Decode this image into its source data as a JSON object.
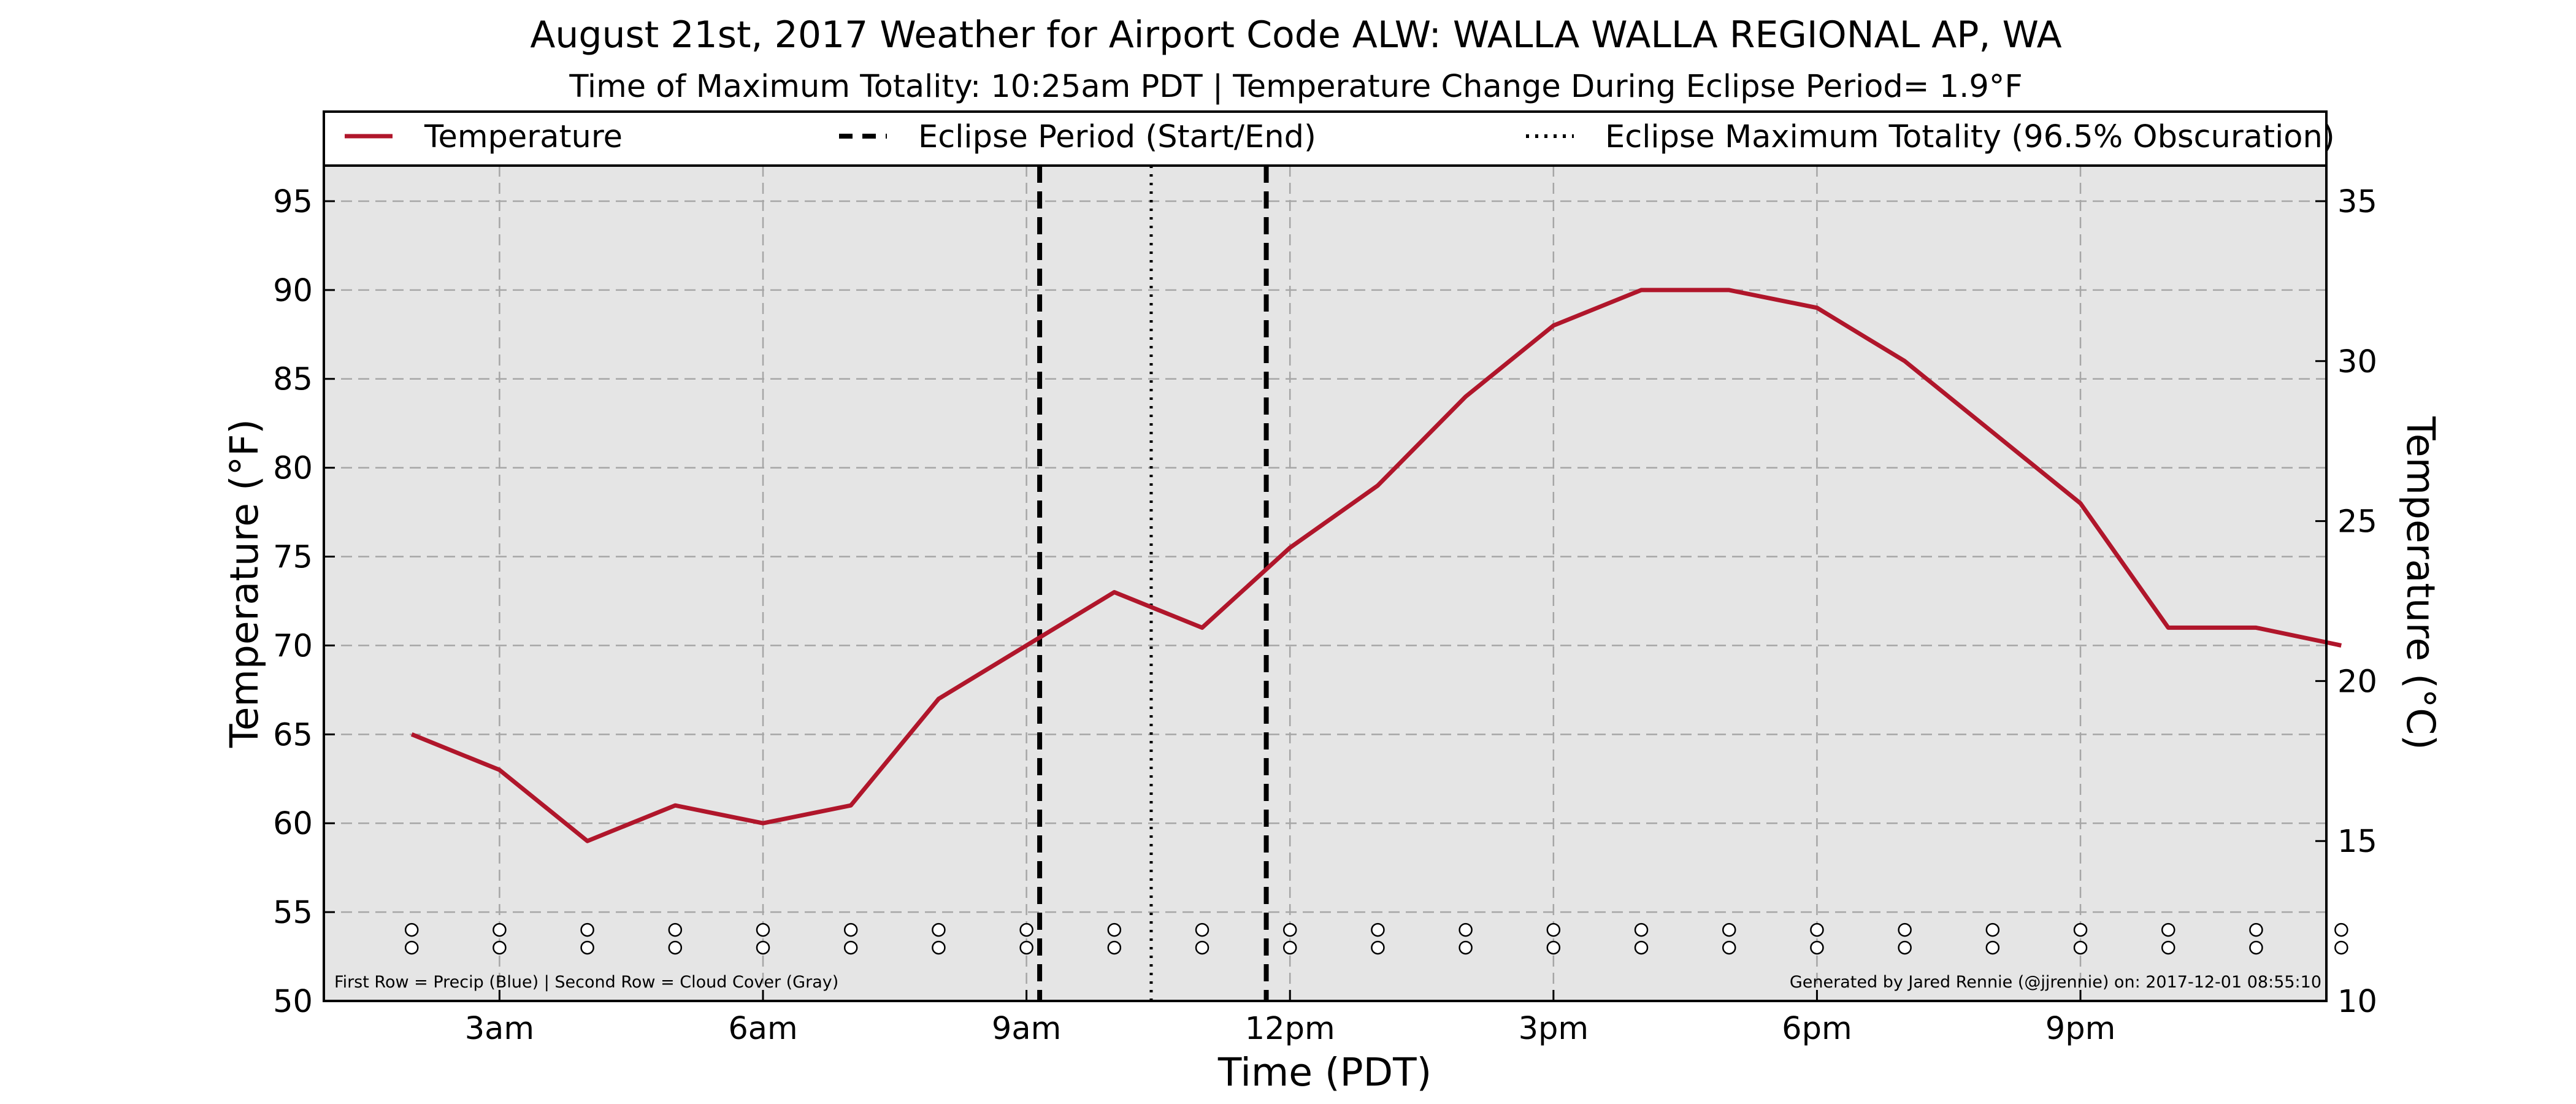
{
  "chart_data": {
    "type": "line",
    "title": "August 21st, 2017 Weather for Airport Code ALW: WALLA WALLA REGIONAL AP, WA",
    "subtitle": "Time of Maximum Totality: 10:25am PDT | Temperature Change During Eclipse Period= 1.9°F",
    "xlabel": "Time (PDT)",
    "ylabel": "Temperature (°F)",
    "ylabel_right": "Temperature (°C)",
    "x_ticks": [
      {
        "hour": 3,
        "label": "3am"
      },
      {
        "hour": 6,
        "label": "6am"
      },
      {
        "hour": 9,
        "label": "9am"
      },
      {
        "hour": 12,
        "label": "12pm"
      },
      {
        "hour": 15,
        "label": "3pm"
      },
      {
        "hour": 18,
        "label": "6pm"
      },
      {
        "hour": 21,
        "label": "9pm"
      }
    ],
    "xlim": [
      1,
      23.8
    ],
    "ylim": [
      50,
      97
    ],
    "y_ticks": [
      50,
      55,
      60,
      65,
      70,
      75,
      80,
      85,
      90,
      95
    ],
    "y2_ticks": [
      10,
      15,
      20,
      25,
      30,
      35
    ],
    "grid": true,
    "legend_position": "top",
    "series": [
      {
        "name": "Temperature",
        "color": "#b0162b",
        "x": [
          2,
          3,
          4,
          5,
          6,
          7,
          8,
          9,
          10,
          11,
          12,
          13,
          14,
          15,
          16,
          17,
          18,
          19,
          20,
          21,
          22,
          23,
          23.97
        ],
        "y": [
          65,
          63,
          59,
          61,
          60,
          61,
          67,
          70,
          73,
          71,
          75.5,
          79,
          84,
          88,
          90,
          90,
          89,
          86,
          82,
          78,
          71,
          71,
          70
        ]
      }
    ],
    "eclipse_period": {
      "name": "Eclipse Period (Start/End)",
      "start_hour": 9.15,
      "end_hour": 11.73
    },
    "eclipse_max": {
      "name": "Eclipse Maximum Totality (96.5% Obscuration)",
      "hour": 10.42
    },
    "marker_hours": [
      2,
      3,
      4,
      5,
      6,
      7,
      8,
      9,
      10,
      11,
      12,
      13,
      14,
      15,
      16,
      17,
      18,
      19,
      20,
      21,
      22,
      23,
      23.97
    ],
    "marker_rows_y": [
      54,
      53
    ],
    "footnote_left": "First Row = Precip (Blue) | Second Row = Cloud Cover (Gray)",
    "footnote_right": "Generated by Jared Rennie (@jjrennie) on: 2017-12-01 08:55:10"
  }
}
